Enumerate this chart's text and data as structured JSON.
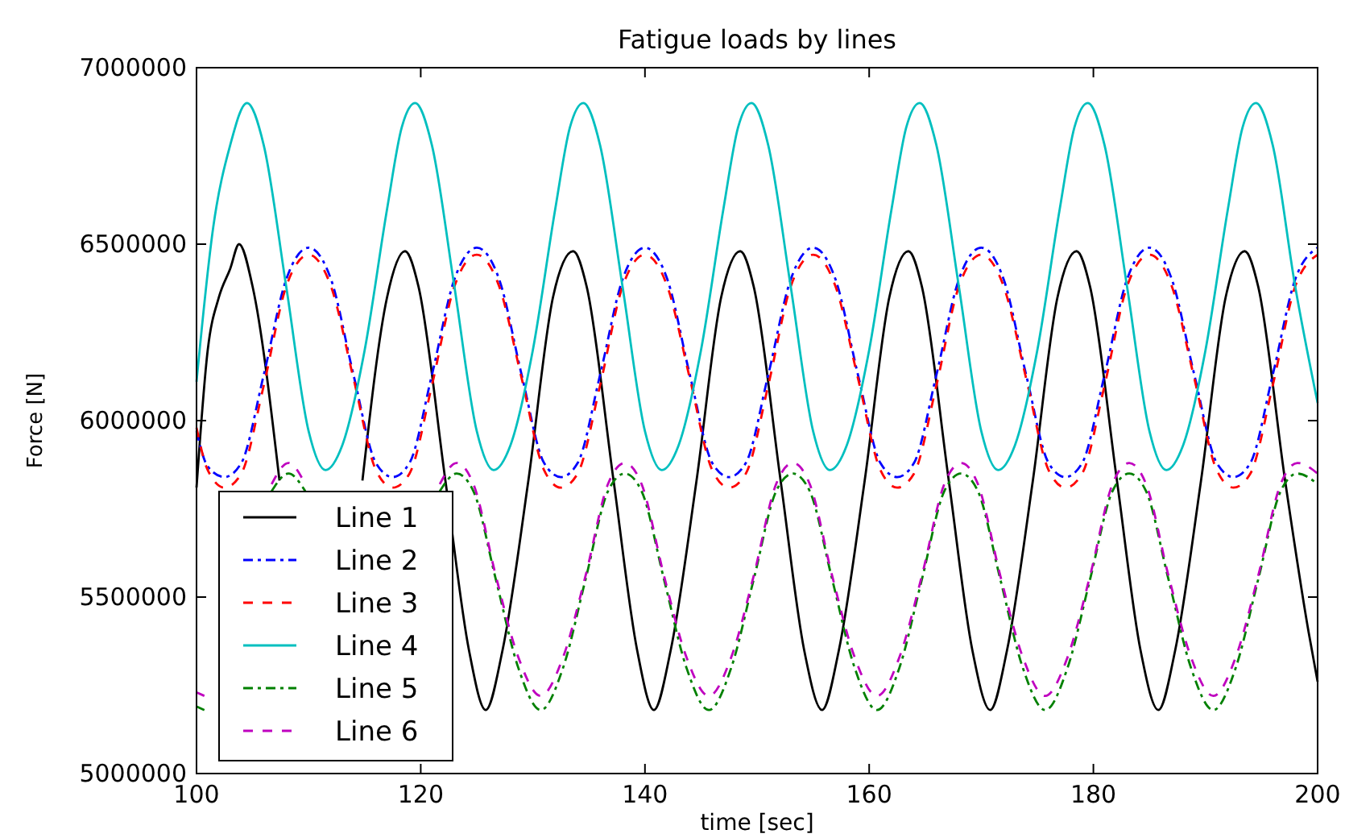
{
  "chart_data": {
    "type": "line",
    "title": "Fatigue loads by lines",
    "xlabel": "time [sec]",
    "ylabel": "Force [N]",
    "xlim": [
      100,
      200
    ],
    "xticks": [
      100,
      120,
      140,
      160,
      180,
      200
    ],
    "ylim": [
      5000000,
      7000000
    ],
    "yticks": [
      5000000,
      5500000,
      6000000,
      6500000,
      7000000
    ],
    "grid": false,
    "legend": "bottom left",
    "marker": "none",
    "series": [
      {
        "name": "Line 1",
        "color": "#000000",
        "line_style": "solid",
        "x": [
          100,
          101,
          102,
          103,
          103.8,
          105,
          107.4,
          109.5,
          111,
          112.5,
          114.8,
          117,
          118.6,
          119.8,
          122.2,
          124.3,
          125.8,
          127.3,
          129.6,
          131.8,
          133.6,
          134.8,
          137.2,
          139.3,
          140.8,
          142.3,
          144.6,
          146.8,
          148.5,
          149.7,
          152.1,
          154.2,
          155.8,
          157.3,
          159.6,
          161.8,
          163.5,
          164.7,
          167.1,
          169.2,
          170.8,
          172.3,
          174.6,
          176.8,
          178.5,
          179.7,
          182.1,
          184.2,
          185.8,
          187.3,
          189.6,
          191.8,
          193.5,
          194.7,
          197.1,
          199.2,
          200
        ],
        "values": [
          5810000,
          6200000,
          6350000,
          6430000,
          6500000,
          6380000,
          5830000,
          null,
          null,
          null,
          5830000,
          6350000,
          6480000,
          6380000,
          5830000,
          5350000,
          5180000,
          5350000,
          5830000,
          6350000,
          6480000,
          6380000,
          5830000,
          5350000,
          5180000,
          5350000,
          5830000,
          6350000,
          6480000,
          6380000,
          5830000,
          5350000,
          5180000,
          5350000,
          5830000,
          6350000,
          6480000,
          6380000,
          5830000,
          5350000,
          5180000,
          5350000,
          5830000,
          6350000,
          6480000,
          6380000,
          5830000,
          5350000,
          5180000,
          5350000,
          5830000,
          6350000,
          6480000,
          6380000,
          5830000,
          5400000,
          5260000
        ]
      },
      {
        "name": "Line 2",
        "color": "#0000ff",
        "line_style": "dashdot",
        "x": [
          100,
          101,
          102.5,
          104,
          106,
          108,
          110,
          112,
          114,
          116,
          117.5,
          119,
          121,
          123,
          125,
          127,
          129,
          131,
          132.5,
          134,
          136,
          138,
          140,
          142,
          144,
          146,
          147.5,
          149,
          151,
          153,
          155,
          157,
          159,
          161,
          162.5,
          164,
          166,
          168,
          170,
          172,
          174,
          176,
          177.5,
          179,
          181,
          183,
          185,
          187,
          189,
          191,
          192.5,
          194,
          196,
          198,
          200
        ],
        "values": [
          5970000,
          5870000,
          5840000,
          5880000,
          6130000,
          6400000,
          6490000,
          6400000,
          6130000,
          5880000,
          5840000,
          5880000,
          6130000,
          6400000,
          6490000,
          6400000,
          6130000,
          5880000,
          5840000,
          5880000,
          6130000,
          6400000,
          6490000,
          6400000,
          6130000,
          5880000,
          5840000,
          5880000,
          6130000,
          6400000,
          6490000,
          6400000,
          6130000,
          5880000,
          5840000,
          5880000,
          6130000,
          6400000,
          6490000,
          6400000,
          6130000,
          5880000,
          5840000,
          5880000,
          6130000,
          6400000,
          6490000,
          6400000,
          6130000,
          5880000,
          5840000,
          5880000,
          6130000,
          6400000,
          6490000
        ]
      },
      {
        "name": "Line 3",
        "color": "#ff0000",
        "line_style": "dashed",
        "x": [
          100,
          101,
          102.5,
          104,
          106,
          108,
          110,
          112,
          114,
          116,
          117.5,
          119,
          121,
          123,
          125,
          127,
          129,
          131,
          132.5,
          134,
          136,
          138,
          140,
          142,
          144,
          146,
          147.5,
          149,
          151,
          153,
          155,
          157,
          159,
          161,
          162.5,
          164,
          166,
          168,
          170,
          172,
          174,
          176,
          177.5,
          179,
          181,
          183,
          185,
          187,
          189,
          191,
          192.5,
          194,
          196,
          198,
          200
        ],
        "values": [
          5980000,
          5860000,
          5810000,
          5850000,
          6100000,
          6380000,
          6470000,
          6380000,
          6120000,
          5860000,
          5810000,
          5850000,
          6100000,
          6380000,
          6470000,
          6380000,
          6120000,
          5860000,
          5810000,
          5850000,
          6100000,
          6380000,
          6470000,
          6380000,
          6120000,
          5860000,
          5810000,
          5850000,
          6100000,
          6380000,
          6470000,
          6380000,
          6120000,
          5860000,
          5810000,
          5850000,
          6100000,
          6380000,
          6470000,
          6380000,
          6120000,
          5860000,
          5810000,
          5850000,
          6100000,
          6380000,
          6470000,
          6380000,
          6120000,
          5860000,
          5810000,
          5850000,
          6100000,
          6380000,
          6470000
        ]
      },
      {
        "name": "Line 4",
        "color": "#00bfbf",
        "line_style": "solid",
        "x": [
          100,
          101.5,
          103,
          104.5,
          106,
          108,
          110,
          111.5,
          113,
          115,
          117,
          118.3,
          119.5,
          121,
          123,
          125,
          126.5,
          128,
          130,
          132,
          133.3,
          134.5,
          136,
          138,
          140,
          141.5,
          143,
          145,
          147,
          148.3,
          149.5,
          151,
          153,
          155,
          156.5,
          158,
          160,
          162,
          163.3,
          164.5,
          166,
          168,
          170,
          171.5,
          173,
          175,
          177,
          178.3,
          179.5,
          181,
          183,
          185,
          186.5,
          188,
          190,
          192,
          193.3,
          194.5,
          196,
          198,
          200
        ],
        "values": [
          6110000,
          6550000,
          6780000,
          6900000,
          6780000,
          6380000,
          5970000,
          5860000,
          5930000,
          6200000,
          6600000,
          6830000,
          6900000,
          6780000,
          6380000,
          5970000,
          5860000,
          5930000,
          6200000,
          6600000,
          6830000,
          6900000,
          6780000,
          6380000,
          5970000,
          5860000,
          5930000,
          6200000,
          6600000,
          6830000,
          6900000,
          6780000,
          6380000,
          5970000,
          5860000,
          5930000,
          6200000,
          6600000,
          6830000,
          6900000,
          6780000,
          6380000,
          5970000,
          5860000,
          5930000,
          6200000,
          6600000,
          6830000,
          6900000,
          6780000,
          6380000,
          5970000,
          5860000,
          5930000,
          6200000,
          6600000,
          6830000,
          6900000,
          6780000,
          6380000,
          6050000
        ]
      },
      {
        "name": "Line 5",
        "color": "#008000",
        "line_style": "dashdot",
        "x": [
          100,
          100.7,
          102.7,
          104.7,
          106.7,
          108.2,
          109.7,
          111.7,
          113.7,
          115.7,
          117.7,
          119.7,
          121.7,
          123.2,
          124.7,
          126.7,
          128.7,
          130.7,
          132.7,
          134.7,
          136.7,
          138.2,
          139.7,
          141.7,
          143.7,
          145.7,
          147.7,
          149.7,
          151.7,
          153.2,
          154.7,
          156.7,
          158.7,
          160.7,
          162.7,
          164.7,
          166.7,
          168.2,
          169.7,
          171.7,
          173.7,
          175.7,
          177.7,
          179.7,
          181.7,
          183.2,
          184.7,
          186.7,
          188.7,
          190.7,
          192.7,
          194.7,
          196.7,
          198.2,
          200
        ],
        "values": [
          5190000,
          5180000,
          null,
          null,
          5800000,
          5850000,
          5800000,
          null,
          null,
          null,
          null,
          null,
          5800000,
          5850000,
          5800000,
          5550000,
          5300000,
          5180000,
          5300000,
          5550000,
          5800000,
          5850000,
          5800000,
          5550000,
          5300000,
          5180000,
          5300000,
          5550000,
          5800000,
          5850000,
          5800000,
          5550000,
          5300000,
          5180000,
          5300000,
          5550000,
          5800000,
          5850000,
          5800000,
          5550000,
          5300000,
          5180000,
          5300000,
          5550000,
          5800000,
          5850000,
          5800000,
          5550000,
          5300000,
          5180000,
          5300000,
          5550000,
          5800000,
          5850000,
          5820000
        ]
      },
      {
        "name": "Line 6",
        "color": "#bf00bf",
        "line_style": "dashed",
        "x": [
          100,
          100.7,
          102.7,
          104.7,
          106.7,
          108.2,
          109.7,
          111.7,
          113.7,
          115.7,
          117.7,
          119.7,
          121.7,
          123.2,
          124.7,
          126.7,
          128.7,
          130.7,
          132.7,
          134.7,
          136.7,
          138.2,
          139.7,
          141.7,
          143.7,
          145.7,
          147.7,
          149.7,
          151.7,
          153.2,
          154.7,
          156.7,
          158.7,
          160.7,
          162.7,
          164.7,
          166.7,
          168.2,
          169.7,
          171.7,
          173.7,
          175.7,
          177.7,
          179.7,
          181.7,
          183.2,
          184.7,
          186.7,
          188.7,
          190.7,
          192.7,
          194.7,
          196.7,
          198.2,
          200
        ],
        "values": [
          5230000,
          5220000,
          null,
          null,
          5820000,
          5880000,
          5820000,
          null,
          null,
          null,
          null,
          null,
          5820000,
          5880000,
          5820000,
          5560000,
          5330000,
          5220000,
          5330000,
          5560000,
          5820000,
          5880000,
          5820000,
          5560000,
          5330000,
          5220000,
          5330000,
          5560000,
          5820000,
          5880000,
          5820000,
          5560000,
          5330000,
          5220000,
          5330000,
          5560000,
          5820000,
          5880000,
          5820000,
          5560000,
          5330000,
          5220000,
          5330000,
          5560000,
          5820000,
          5880000,
          5820000,
          5560000,
          5330000,
          5220000,
          5330000,
          5560000,
          5820000,
          5880000,
          5850000
        ]
      }
    ]
  }
}
